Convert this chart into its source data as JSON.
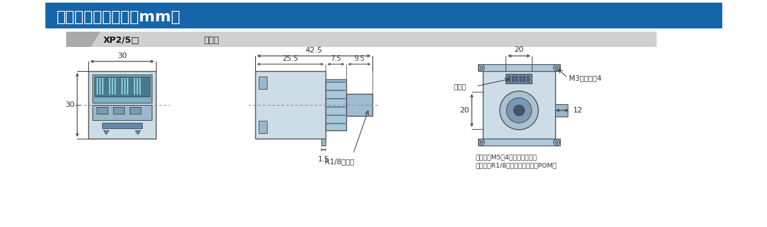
{
  "title": "外形尺寸图（单位：mm）",
  "subtitle_label": "XP2/5□",
  "subtitle_desc": "传感器",
  "bg_header_color": "#1565a8",
  "bg_sub_color": "#cccccc",
  "body_bg": "#ffffff",
  "diagram_fill": "#ccdde8",
  "dim_color": "#333333",
  "title_text_color": "#ffffff",
  "annotations": {
    "front_width": "30",
    "front_height": "30",
    "side_total": "42.5",
    "side_main": "25.5",
    "side_mid": "7.5",
    "side_right": "9.5",
    "side_bottom": "1.5",
    "thread_label": "R1/8外螺纹",
    "back_width": "20",
    "back_height": "20",
    "back_right": "12",
    "connector_label": "连接器",
    "m3_label": "M3内螺纹深4",
    "inner_thread": "内螺纹：M5深4（材质：黄铜）",
    "outer_thread": "外螺纹：R1/8（材质：六角黄铜POM）"
  }
}
